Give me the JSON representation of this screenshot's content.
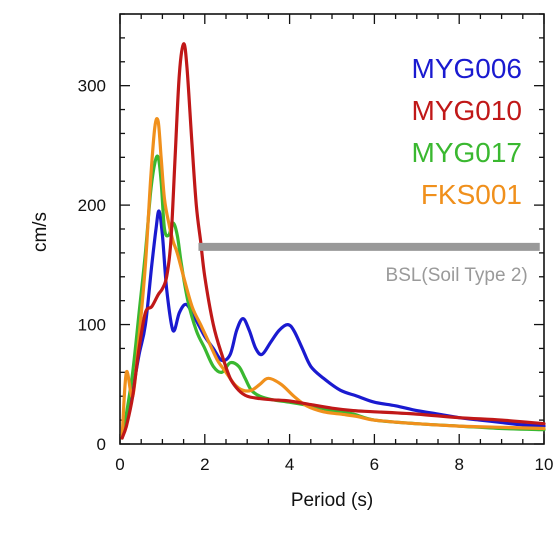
{
  "chart_data": {
    "type": "line",
    "title": "",
    "xlabel": "Period (s)",
    "ylabel": "cm/s",
    "xlim": [
      0,
      10
    ],
    "ylim": [
      0,
      360
    ],
    "xticks": [
      0,
      2,
      4,
      6,
      8,
      10
    ],
    "yticks": [
      0,
      100,
      200,
      300
    ],
    "grid": false,
    "legend_position": "top-right",
    "series": [
      {
        "name": "MYG006",
        "color": "#1a1ad0",
        "x": [
          0.05,
          0.15,
          0.3,
          0.45,
          0.6,
          0.75,
          0.85,
          0.92,
          1.0,
          1.1,
          1.25,
          1.4,
          1.55,
          1.7,
          1.85,
          2.0,
          2.2,
          2.4,
          2.6,
          2.75,
          2.9,
          3.05,
          3.2,
          3.35,
          3.55,
          3.75,
          3.95,
          4.1,
          4.3,
          4.5,
          4.8,
          5.2,
          5.6,
          6.0,
          6.5,
          7.0,
          7.5,
          8.0,
          8.5,
          9.0,
          9.5,
          10.0
        ],
        "y": [
          5,
          20,
          45,
          75,
          100,
          150,
          180,
          195,
          175,
          130,
          95,
          110,
          117,
          110,
          100,
          90,
          80,
          70,
          75,
          95,
          105,
          95,
          80,
          75,
          85,
          95,
          100,
          95,
          80,
          65,
          55,
          45,
          40,
          35,
          32,
          28,
          25,
          22,
          20,
          18,
          16,
          15
        ]
      },
      {
        "name": "MYG010",
        "color": "#c01818",
        "x": [
          0.05,
          0.15,
          0.3,
          0.45,
          0.6,
          0.75,
          0.9,
          1.0,
          1.1,
          1.2,
          1.3,
          1.4,
          1.5,
          1.58,
          1.7,
          1.8,
          1.9,
          2.0,
          2.2,
          2.4,
          2.6,
          2.8,
          3.0,
          3.3,
          3.6,
          4.0,
          4.5,
          5.0,
          5.5,
          6.0,
          7.0,
          8.0,
          9.0,
          10.0
        ],
        "y": [
          5,
          15,
          40,
          80,
          110,
          115,
          125,
          130,
          140,
          170,
          240,
          310,
          335,
          315,
          250,
          200,
          170,
          140,
          100,
          75,
          55,
          45,
          40,
          38,
          37,
          36,
          33,
          30,
          28,
          27,
          25,
          22,
          20,
          17
        ]
      },
      {
        "name": "MYG017",
        "color": "#3ab830",
        "x": [
          0.05,
          0.15,
          0.3,
          0.45,
          0.6,
          0.72,
          0.82,
          0.9,
          0.97,
          1.05,
          1.15,
          1.25,
          1.35,
          1.45,
          1.6,
          1.8,
          2.0,
          2.2,
          2.4,
          2.6,
          2.8,
          2.95,
          3.1,
          3.3,
          3.6,
          4.0,
          4.5,
          5.0,
          5.5,
          6.0,
          7.0,
          8.0,
          9.0,
          10.0
        ],
        "y": [
          5,
          25,
          60,
          110,
          160,
          210,
          235,
          240,
          220,
          180,
          175,
          185,
          175,
          150,
          120,
          95,
          80,
          65,
          60,
          68,
          65,
          55,
          45,
          40,
          37,
          35,
          32,
          28,
          25,
          20,
          17,
          15,
          13,
          12
        ]
      },
      {
        "name": "FKS001",
        "color": "#f0901c",
        "x": [
          0.05,
          0.15,
          0.3,
          0.45,
          0.6,
          0.72,
          0.82,
          0.9,
          0.97,
          1.05,
          1.15,
          1.25,
          1.35,
          1.5,
          1.7,
          1.9,
          2.1,
          2.3,
          2.5,
          2.7,
          2.9,
          3.1,
          3.3,
          3.5,
          3.8,
          4.1,
          4.4,
          4.8,
          5.2,
          5.6,
          6.0,
          7.0,
          8.0,
          9.0,
          10.0
        ],
        "y": [
          5,
          60,
          40,
          90,
          150,
          220,
          265,
          270,
          240,
          205,
          185,
          170,
          160,
          140,
          115,
          100,
          85,
          70,
          60,
          50,
          45,
          45,
          50,
          55,
          50,
          40,
          32,
          27,
          25,
          23,
          20,
          17,
          15,
          14,
          13
        ]
      }
    ],
    "reference_line": {
      "label": "BSL(Soil Type 2)",
      "color": "#999999",
      "y": 165,
      "x_range": [
        1.85,
        9.9
      ]
    }
  }
}
